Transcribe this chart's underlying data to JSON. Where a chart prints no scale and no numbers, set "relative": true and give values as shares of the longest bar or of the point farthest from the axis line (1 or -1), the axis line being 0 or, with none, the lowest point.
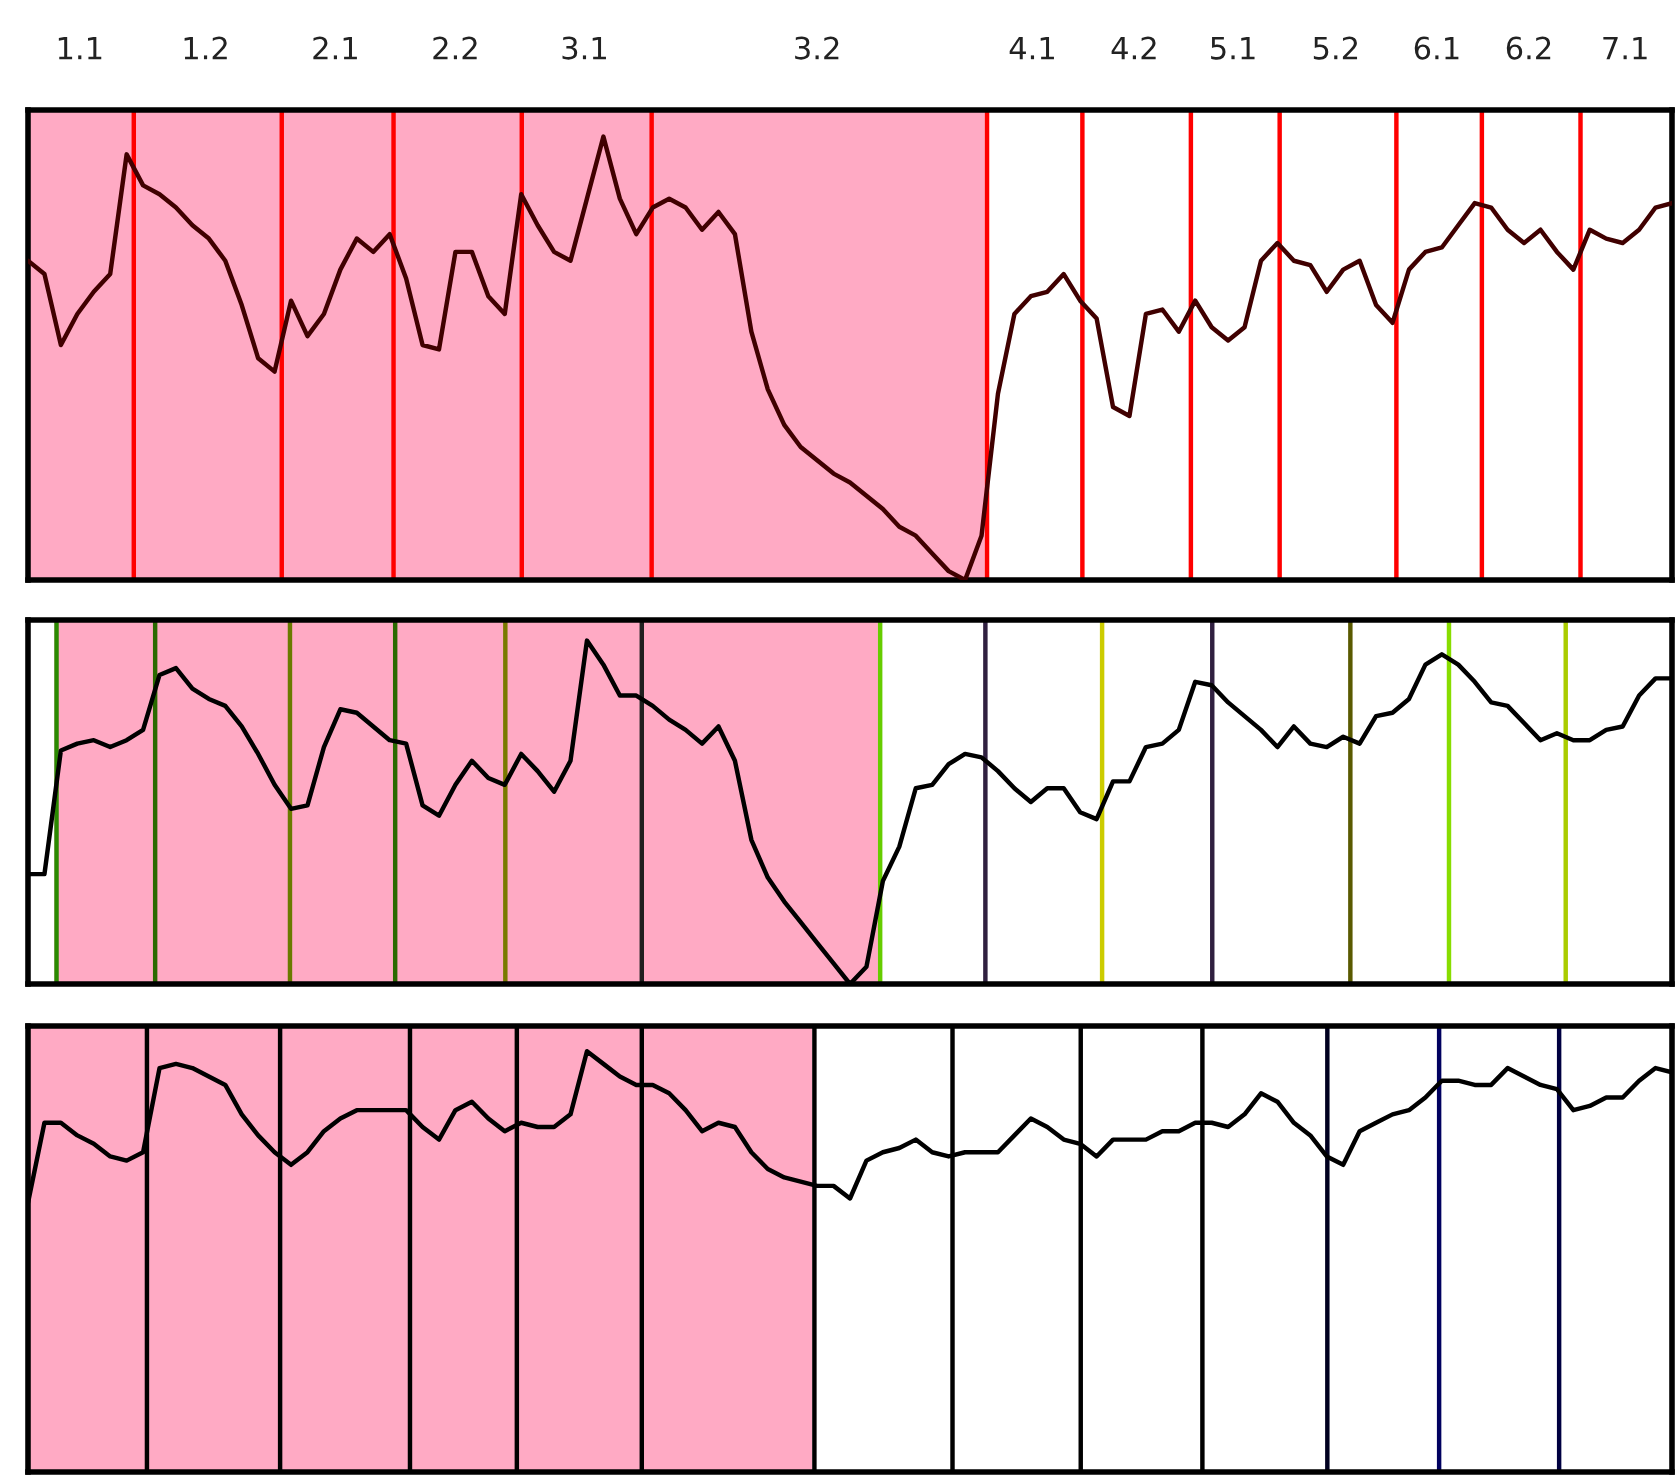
{
  "chart_data": [
    {
      "type": "line",
      "relative": true,
      "categories": [
        null,
        null,
        null,
        null,
        null,
        null,
        null,
        null,
        null,
        null,
        null,
        null,
        null,
        null,
        null,
        null,
        null,
        null,
        null,
        null,
        null,
        null,
        null,
        null,
        null,
        null,
        null,
        null,
        null,
        null,
        null,
        null,
        null,
        null,
        null,
        null,
        null,
        null,
        null,
        null,
        null,
        null,
        null,
        null,
        null,
        null,
        null,
        null,
        null,
        null,
        null,
        null,
        null,
        null,
        null,
        null,
        null,
        null,
        null,
        null,
        null,
        null,
        null,
        null,
        null,
        null,
        null,
        null,
        null,
        null,
        null,
        null,
        null,
        null,
        null,
        null,
        null,
        null,
        null,
        null,
        null,
        null,
        null,
        null,
        null,
        null,
        null,
        null,
        null,
        null,
        null,
        null,
        null,
        null,
        null,
        null,
        null,
        null,
        null,
        null,
        null
      ],
      "annotations": [
        "1.1",
        "1.2",
        "2.1",
        "2.2",
        "3.1",
        "3.2",
        "4.1",
        "4.2",
        "5.1",
        "5.2",
        "6.1",
        "6.2",
        "7.1"
      ],
      "series": [
        {
          "color": "#400000",
          "values": [
            0.72,
            0.69,
            0.53,
            0.6,
            0.65,
            0.69,
            0.96,
            0.89,
            0.87,
            0.84,
            0.8,
            0.77,
            0.72,
            0.62,
            0.5,
            0.47,
            0.63,
            0.55,
            0.6,
            0.7,
            0.77,
            0.74,
            0.78,
            0.68,
            0.53,
            0.52,
            0.74,
            0.74,
            0.64,
            0.6,
            0.87,
            0.8,
            0.74,
            0.72,
            0.86,
            1.0,
            0.86,
            0.78,
            0.84,
            0.86,
            0.84,
            0.79,
            0.83,
            0.78,
            0.56,
            0.43,
            0.35,
            0.3,
            0.27,
            0.24,
            0.22,
            0.19,
            0.16,
            0.12,
            0.1,
            0.06,
            0.02,
            0.0,
            0.1,
            0.42,
            0.6,
            0.64,
            0.65,
            0.69,
            0.63,
            0.59,
            0.39,
            0.37,
            0.6,
            0.61,
            0.56,
            0.63,
            0.57,
            0.54,
            0.57,
            0.72,
            0.76,
            0.72,
            0.71,
            0.65,
            0.7,
            0.72,
            0.62,
            0.58,
            0.7,
            0.74,
            0.75,
            0.8,
            0.85,
            0.84,
            0.79,
            0.76,
            0.79,
            0.74,
            0.7,
            0.79,
            0.77,
            0.76,
            0.79,
            0.84,
            0.85
          ]
        }
      ]
    },
    {
      "type": "line",
      "relative": true,
      "categories": [
        null,
        null,
        null,
        null,
        null,
        null,
        null,
        null,
        null,
        null,
        null,
        null,
        null,
        null,
        null,
        null,
        null,
        null,
        null,
        null,
        null,
        null,
        null,
        null,
        null,
        null,
        null,
        null,
        null,
        null,
        null,
        null,
        null,
        null,
        null,
        null,
        null,
        null,
        null,
        null,
        null,
        null,
        null,
        null,
        null,
        null,
        null,
        null,
        null,
        null,
        null,
        null,
        null,
        null,
        null,
        null,
        null,
        null,
        null,
        null,
        null,
        null,
        null,
        null,
        null,
        null,
        null,
        null,
        null,
        null,
        null,
        null,
        null,
        null,
        null,
        null,
        null,
        null,
        null,
        null,
        null,
        null,
        null,
        null,
        null,
        null,
        null,
        null,
        null,
        null,
        null,
        null,
        null,
        null,
        null,
        null,
        null,
        null,
        null,
        null,
        null
      ],
      "series": [
        {
          "color": "#000000",
          "values": [
            0.32,
            0.32,
            0.68,
            0.7,
            0.71,
            0.69,
            0.71,
            0.74,
            0.9,
            0.92,
            0.86,
            0.83,
            0.81,
            0.75,
            0.67,
            0.58,
            0.51,
            0.52,
            0.69,
            0.8,
            0.79,
            0.75,
            0.71,
            0.7,
            0.52,
            0.49,
            0.58,
            0.65,
            0.6,
            0.58,
            0.67,
            0.62,
            0.56,
            0.65,
            1.0,
            0.93,
            0.84,
            0.84,
            0.81,
            0.77,
            0.74,
            0.7,
            0.75,
            0.65,
            0.42,
            0.31,
            0.24,
            0.18,
            0.12,
            0.06,
            0.0,
            0.05,
            0.3,
            0.4,
            0.57,
            0.58,
            0.64,
            0.67,
            0.66,
            0.62,
            0.57,
            0.53,
            0.57,
            0.57,
            0.5,
            0.48,
            0.59,
            0.59,
            0.69,
            0.7,
            0.74,
            0.88,
            0.87,
            0.82,
            0.78,
            0.74,
            0.69,
            0.75,
            0.7,
            0.69,
            0.72,
            0.7,
            0.78,
            0.79,
            0.83,
            0.93,
            0.96,
            0.93,
            0.88,
            0.82,
            0.81,
            0.76,
            0.71,
            0.73,
            0.71,
            0.71,
            0.74,
            0.75,
            0.84,
            0.89,
            0.89
          ]
        }
      ]
    },
    {
      "type": "line",
      "relative": true,
      "categories": [
        null,
        null,
        null,
        null,
        null,
        null,
        null,
        null,
        null,
        null,
        null,
        null,
        null,
        null,
        null,
        null,
        null,
        null,
        null,
        null,
        null,
        null,
        null,
        null,
        null,
        null,
        null,
        null,
        null,
        null,
        null,
        null,
        null,
        null,
        null,
        null,
        null,
        null,
        null,
        null,
        null,
        null,
        null,
        null,
        null,
        null,
        null,
        null,
        null,
        null,
        null,
        null,
        null,
        null,
        null,
        null,
        null,
        null,
        null,
        null,
        null,
        null,
        null,
        null,
        null,
        null,
        null,
        null,
        null,
        null,
        null,
        null,
        null,
        null,
        null,
        null,
        null,
        null,
        null,
        null,
        null,
        null,
        null,
        null,
        null,
        null,
        null,
        null,
        null,
        null,
        null,
        null,
        null,
        null,
        null,
        null,
        null,
        null,
        null,
        null,
        null
      ],
      "series": [
        {
          "color": "#000000",
          "values": [
            0.64,
            0.83,
            0.83,
            0.8,
            0.78,
            0.75,
            0.74,
            0.76,
            0.96,
            0.97,
            0.96,
            0.94,
            0.92,
            0.85,
            0.8,
            0.76,
            0.73,
            0.76,
            0.81,
            0.84,
            0.86,
            0.86,
            0.86,
            0.86,
            0.82,
            0.79,
            0.86,
            0.88,
            0.84,
            0.81,
            0.83,
            0.82,
            0.82,
            0.85,
            1.0,
            0.97,
            0.94,
            0.92,
            0.92,
            0.9,
            0.86,
            0.81,
            0.83,
            0.82,
            0.76,
            0.72,
            0.7,
            0.69,
            0.68,
            0.68,
            0.65,
            0.74,
            0.76,
            0.77,
            0.79,
            0.76,
            0.75,
            0.76,
            0.76,
            0.76,
            0.8,
            0.84,
            0.82,
            0.79,
            0.78,
            0.75,
            0.79,
            0.79,
            0.79,
            0.81,
            0.81,
            0.83,
            0.83,
            0.82,
            0.85,
            0.9,
            0.88,
            0.83,
            0.8,
            0.75,
            0.73,
            0.81,
            0.83,
            0.85,
            0.86,
            0.89,
            0.93,
            0.93,
            0.92,
            0.92,
            0.96,
            0.94,
            0.92,
            0.91,
            0.86,
            0.87,
            0.89,
            0.89,
            0.93,
            0.96,
            0.95
          ]
        }
      ]
    }
  ]
}
